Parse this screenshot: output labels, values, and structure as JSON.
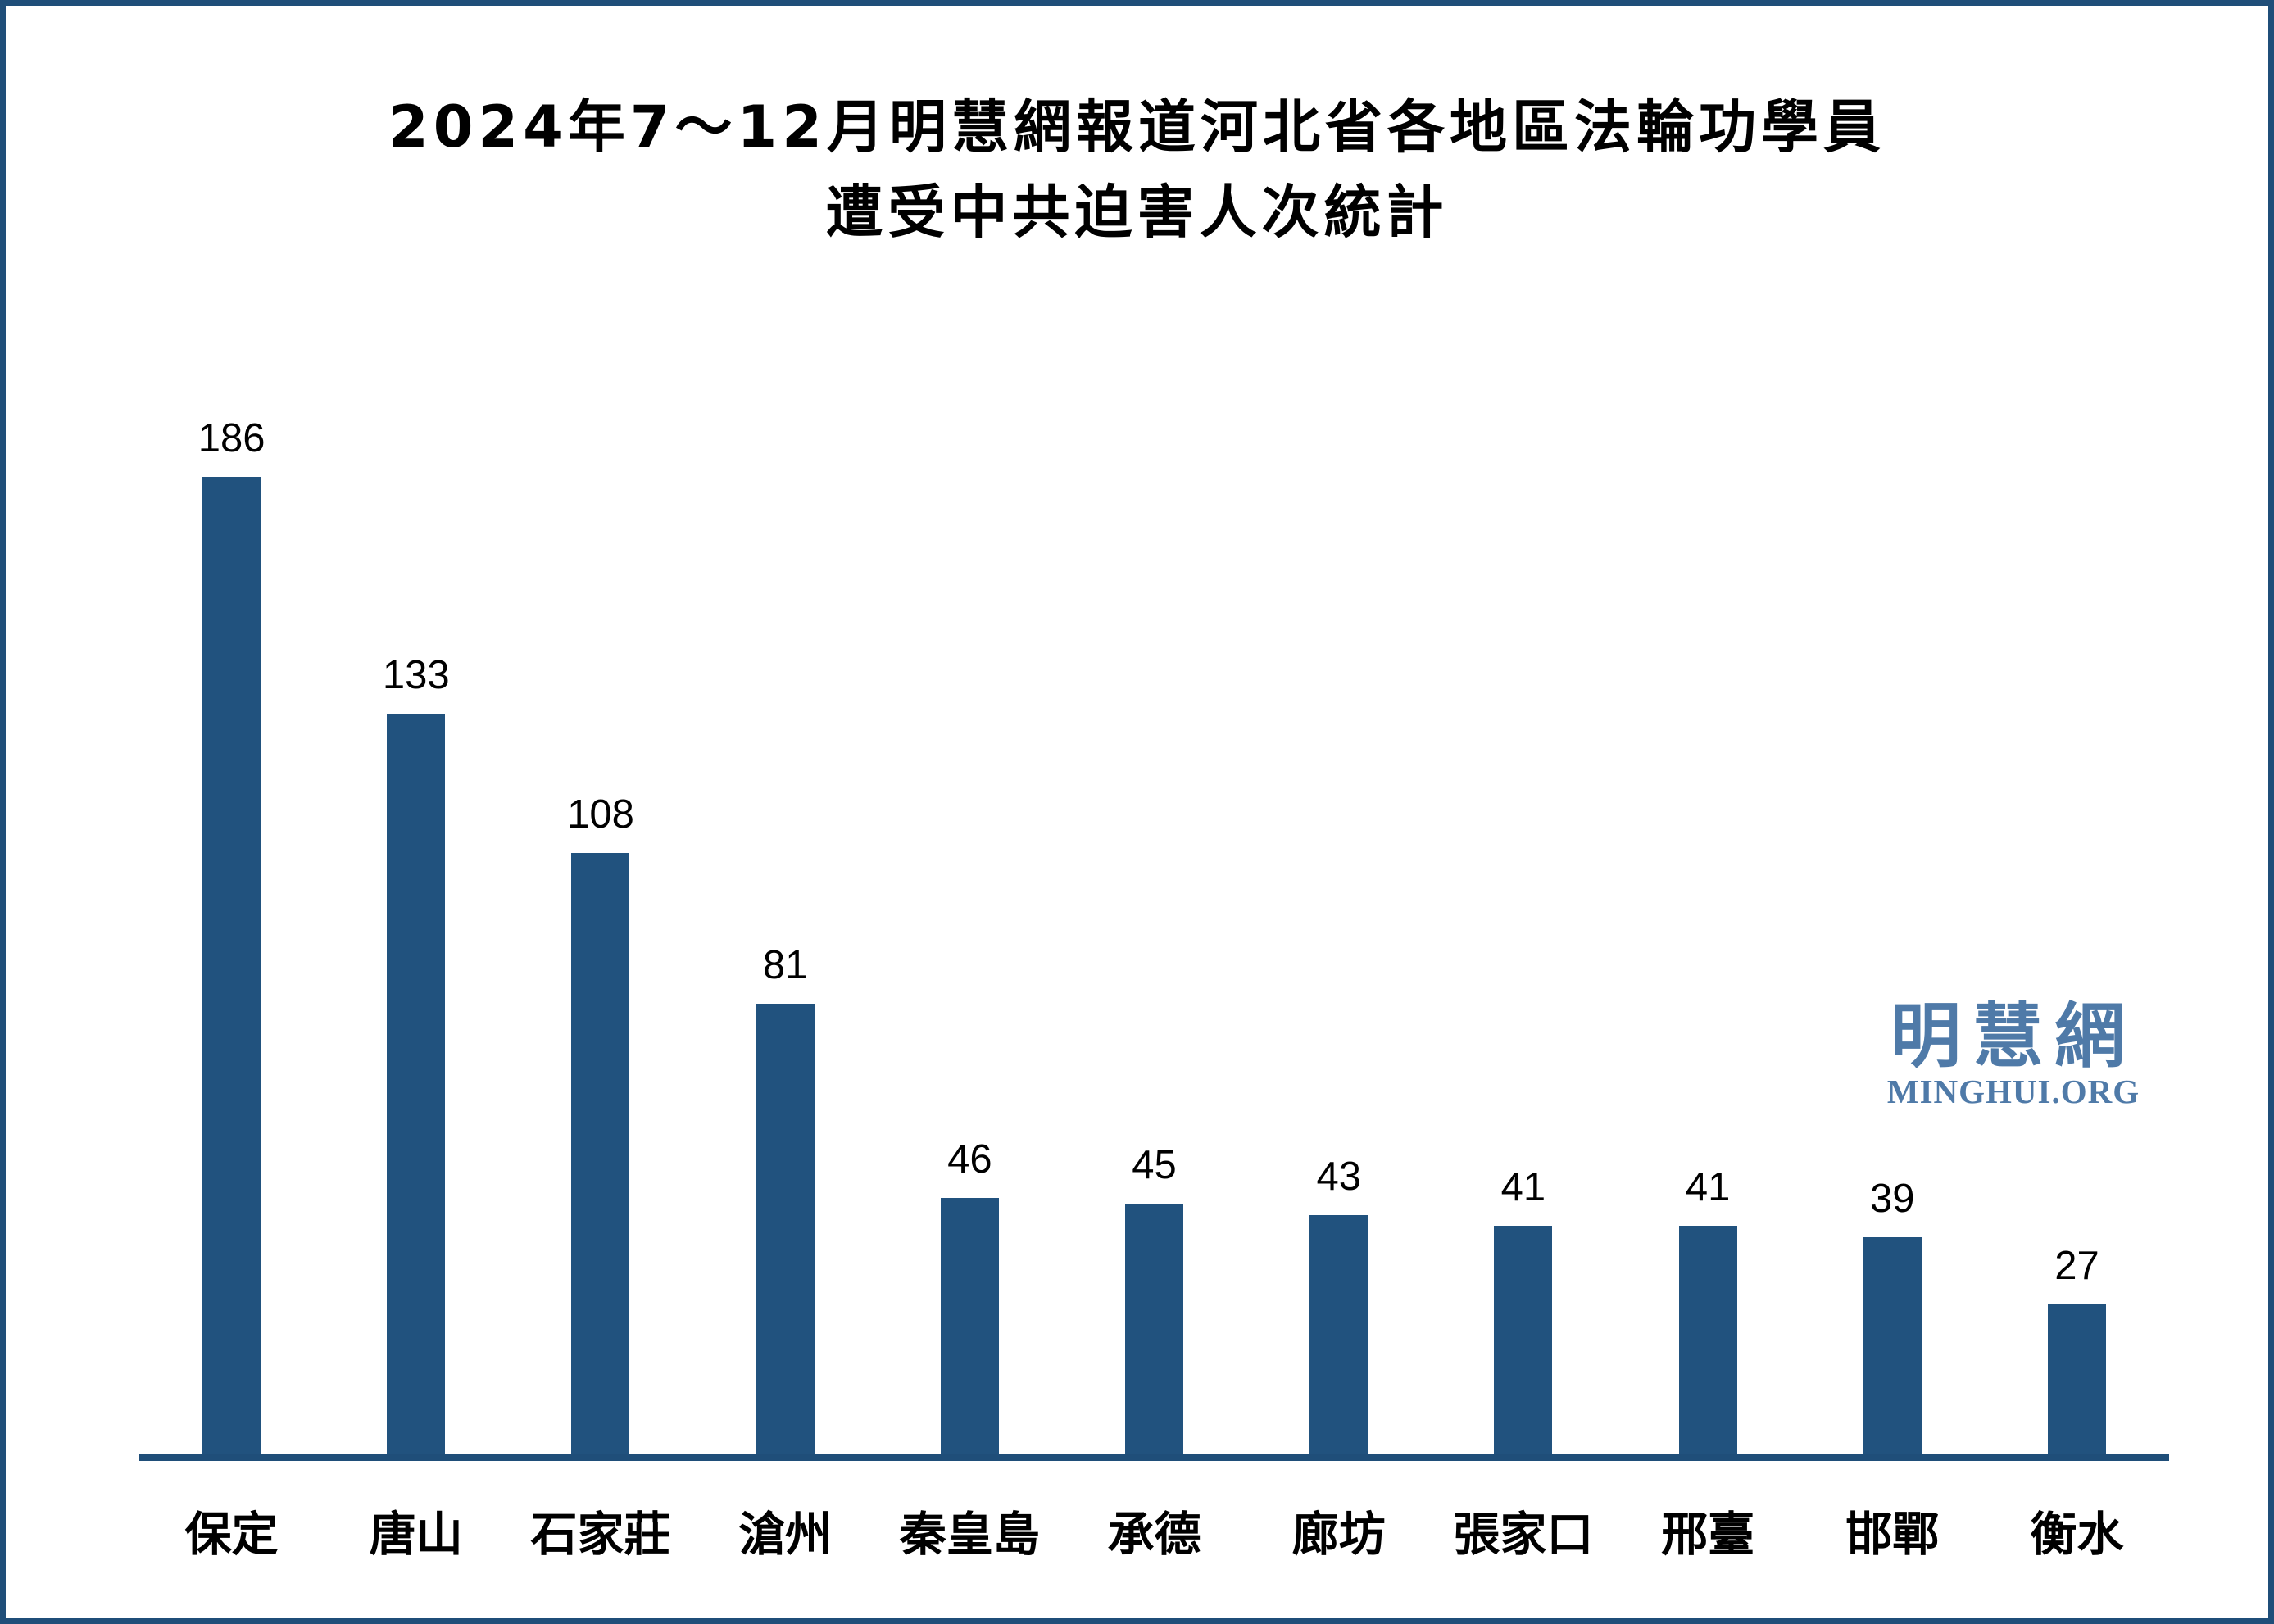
{
  "frame": {
    "border_color": "#1F4E79",
    "background_color": "#FFFFFF"
  },
  "title": {
    "line1": "2024年7～12月明慧網報道河北省各地區法輪功學員",
    "line2": "遭受中共迫害人次統計"
  },
  "watermark": {
    "cjk": "明慧網",
    "latin": "MINGHUI.ORG",
    "color": "#4F7AA8"
  },
  "chart_data": {
    "type": "bar",
    "title": "2024年7～12月明慧網報道河北省各地區法輪功學員遭受中共迫害人次統計",
    "categories": [
      "保定",
      "唐山",
      "石家莊",
      "滄州",
      "秦皇島",
      "承德",
      "廊坊",
      "張家口",
      "邢臺",
      "邯鄲",
      "衡水"
    ],
    "values": [
      186,
      133,
      108,
      81,
      46,
      45,
      43,
      41,
      41,
      39,
      27
    ],
    "xlabel": "",
    "ylabel": "",
    "ylim": [
      0,
      186
    ],
    "bar_color": "#21527E",
    "axis_color": "#1F4E79",
    "grid": false,
    "legend": false,
    "value_labels_shown": true
  }
}
